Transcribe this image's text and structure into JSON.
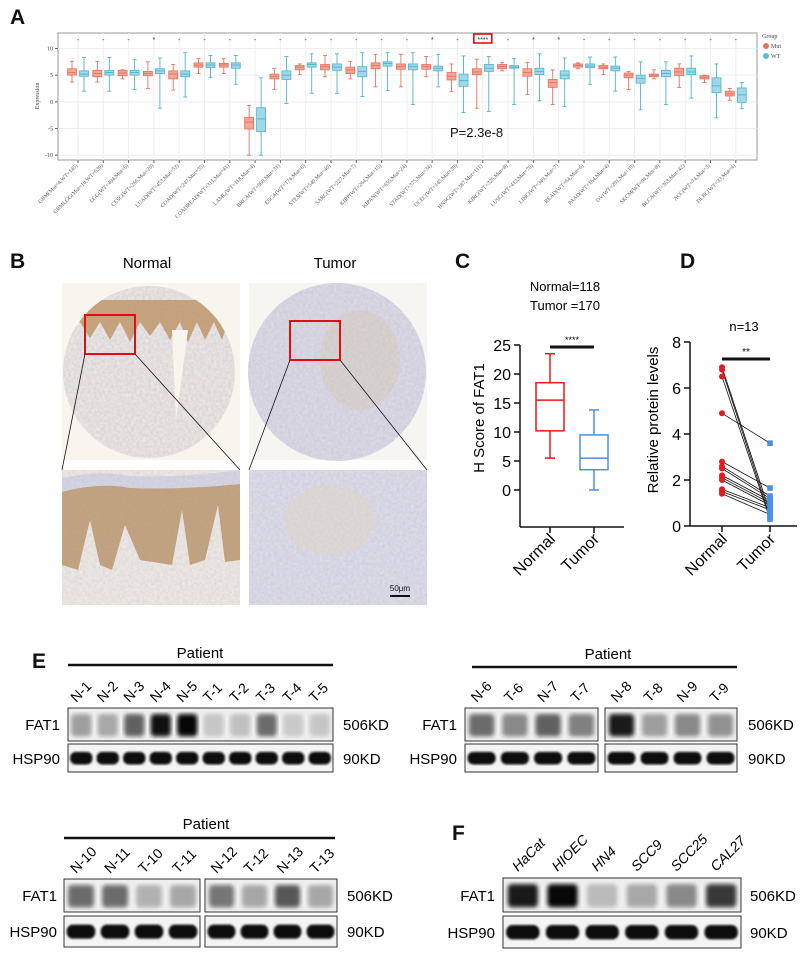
{
  "panels": {
    "a": "A",
    "b": "B",
    "c": "C",
    "d": "D",
    "e": "E",
    "f": "F"
  },
  "panel_b": {
    "normal_label": "Normal",
    "tumor_label": "Tumor",
    "scale_bar": "50μm"
  },
  "panel_e": {
    "group_label": "Patient",
    "rows": [
      "FAT1",
      "HSP90"
    ],
    "markers": [
      "506KD",
      "90KD"
    ],
    "groups": [
      {
        "lanes": [
          "N-1",
          "N-2",
          "N-3",
          "N-4",
          "N-5",
          "T-1",
          "T-2",
          "T-3",
          "T-4",
          "T-5"
        ],
        "fat1_levels": [
          0.25,
          0.2,
          0.55,
          0.95,
          1.0,
          0.05,
          0.08,
          0.5,
          0.03,
          0.05
        ]
      },
      {
        "lanes": [
          "N-6",
          "T-6",
          "N-7",
          "T-7",
          "N-8",
          "T-8",
          "N-9",
          "T-9"
        ],
        "fat1_levels": [
          0.5,
          0.35,
          0.55,
          0.4,
          0.9,
          0.25,
          0.35,
          0.3
        ]
      },
      {
        "lanes": [
          "N-10",
          "N-11",
          "T-10",
          "T-11",
          "N-12",
          "T-12",
          "N-13",
          "T-13"
        ],
        "fat1_levels": [
          0.5,
          0.5,
          0.15,
          0.2,
          0.45,
          0.2,
          0.6,
          0.2
        ]
      }
    ]
  },
  "panel_f": {
    "rows": [
      "FAT1",
      "HSP90"
    ],
    "markers": [
      "506KD",
      "90KD"
    ],
    "lanes": [
      "HaCat",
      "HIOEC",
      "HN4",
      "SCC9",
      "SCC25",
      "CAL27"
    ],
    "fat1_levels": [
      0.9,
      1.0,
      0.1,
      0.2,
      0.35,
      0.75
    ]
  },
  "chart_data": [
    {
      "type": "box",
      "ylabel": "Expression",
      "ylim": [
        -10.9,
        12.9
      ],
      "yticks": [
        -10,
        -5,
        0,
        5,
        10
      ],
      "grid": true,
      "legend": {
        "title": "Group",
        "position": "right",
        "entries": [
          {
            "name": "Mut",
            "color": "#e8715f"
          },
          {
            "name": "WT",
            "color": "#5bbcd6"
          }
        ]
      },
      "annotation": "P=2.3e-8",
      "highlighted_index": 16,
      "categories": [
        "GBM(Mut=4,WT=145)",
        "GBMLGG(Mut=10,WT=639)",
        "LGG(WT=494,Mut=6)",
        "CESC(WT=266,Mut=20)",
        "LUAD(WT=453,Mut=53)",
        "COAD(WT=247,Mut=35)",
        "COADREAD(WT=311,Mut=41)",
        "LAML(WT=118,Mut=4)",
        "BRCA(WT=969,Mut=31)",
        "ESCA(WT=174,Mut=6)",
        "STES(WT=540,Mut=40)",
        "SARC(WT=227,Mut=7)",
        "KIRP(WT=264,Mut=15)",
        "KIPAN(WT=655,Mut=24)",
        "STAD(WT=375,Mut=34)",
        "UCEC(WT=145,Mut=39)",
        "HNSC(WT=387,Mut=111)",
        "KIRC(WT=326,Mut=8)",
        "LUSC(WT=413,Mut=70)",
        "LIHC(WT=349,Mut=7)",
        "READ(WT=64,Mut=6)",
        "PAAD(WT=164,Mut=4)",
        "OV(WT=291,Mut=10)",
        "SKCM(WT=94,Mut=8)",
        "BLCA(WT=363,Mut=42)",
        "ACC(WT=74,Mut=3)",
        "DLBC(WT=33,Mut=4)"
      ],
      "significance": [
        "-",
        "-",
        "-",
        "*",
        "-",
        "-",
        "-",
        "-",
        "-",
        "-",
        "-",
        "-",
        "-",
        "-",
        "*",
        "-",
        "****",
        "-",
        "*",
        "*",
        "-",
        "-",
        "-",
        "-",
        "-",
        "-",
        "-"
      ],
      "series": [
        {
          "name": "Mut",
          "color": "#e8715f",
          "fill": "#f4a596",
          "stats": [
            [
              3.7,
              5,
              5.5,
              6.2,
              7.6
            ],
            [
              3.7,
              4.7,
              5.3,
              5.9,
              7.6
            ],
            [
              4.3,
              4.9,
              5.4,
              5.9,
              6
            ],
            [
              2.5,
              4.9,
              5.3,
              5.7,
              7.5
            ],
            [
              2.2,
              4.3,
              5.2,
              5.8,
              7
            ],
            [
              5.3,
              6.5,
              6.9,
              7.3,
              8.1
            ],
            [
              5.3,
              6.5,
              6.9,
              7.2,
              8.1
            ],
            [
              -10,
              -5.1,
              -3.8,
              -2.9,
              -0.7
            ],
            [
              2.3,
              4.3,
              4.8,
              5.2,
              6.3
            ],
            [
              5.1,
              6,
              6.5,
              6.8,
              7.1
            ],
            [
              4.7,
              6,
              6.6,
              7,
              8.7
            ],
            [
              4.3,
              5.3,
              6,
              6.5,
              7.6
            ],
            [
              2.8,
              6.2,
              6.8,
              7.3,
              8.9
            ],
            [
              2.8,
              6.1,
              6.6,
              7.1,
              8.9
            ],
            [
              4.7,
              6.1,
              6.6,
              7,
              8.5
            ],
            [
              1.9,
              4.1,
              4.8,
              5.5,
              7.1
            ],
            [
              -1.2,
              5.1,
              5.6,
              6.2,
              8
            ],
            [
              5.8,
              6.2,
              6.6,
              7,
              7.4
            ],
            [
              1.4,
              4.8,
              5.5,
              6.2,
              7.4
            ],
            [
              -0.5,
              2.7,
              3.6,
              4.2,
              6
            ],
            [
              6.2,
              6.5,
              6.8,
              7.1,
              7.3
            ],
            [
              5.1,
              6.2,
              6.5,
              6.8,
              7.1
            ],
            [
              2.3,
              4.5,
              5,
              5.4,
              5.7
            ],
            [
              4.3,
              4.7,
              5,
              5.2,
              6
            ],
            [
              2.7,
              4.9,
              5.6,
              6.3,
              7.1
            ],
            [
              3.6,
              4.3,
              4.6,
              4.9,
              5
            ],
            [
              0.3,
              1.1,
              1.5,
              2,
              2.5
            ]
          ]
        },
        {
          "name": "WT",
          "color": "#4fb3cc",
          "fill": "#9fd8e8",
          "stats": [
            [
              2,
              4.8,
              5.2,
              5.8,
              8.3
            ],
            [
              2,
              5,
              5.5,
              5.9,
              8.3
            ],
            [
              2.3,
              5,
              5.5,
              5.9,
              7.9
            ],
            [
              -1.2,
              5.3,
              5.8,
              6.2,
              8.2
            ],
            [
              0.9,
              4.7,
              5.2,
              5.8,
              9.2
            ],
            [
              4.6,
              6.4,
              6.9,
              7.3,
              8.7
            ],
            [
              3.3,
              6.3,
              6.9,
              7.3,
              8.7
            ],
            [
              -10,
              -5.6,
              -3.2,
              -1.1,
              4.5
            ],
            [
              -0.3,
              4.2,
              5,
              5.8,
              8.5
            ],
            [
              1.6,
              6.5,
              7,
              7.3,
              9
            ],
            [
              1.6,
              5.9,
              6.5,
              7.1,
              9
            ],
            [
              1,
              4.7,
              5.7,
              6.6,
              9.2
            ],
            [
              2.1,
              6.7,
              7.2,
              7.5,
              9.2
            ],
            [
              -0.5,
              6,
              6.6,
              7.1,
              9.2
            ],
            [
              2.8,
              5.8,
              6.3,
              6.7,
              8.9
            ],
            [
              -2,
              2.9,
              4,
              5.2,
              8.6
            ],
            [
              -1.8,
              5.7,
              6.3,
              7,
              8.5
            ],
            [
              -0.5,
              6.3,
              6.5,
              6.8,
              8.1
            ],
            [
              0.2,
              5.1,
              5.7,
              6.3,
              9
            ],
            [
              -0.9,
              4.3,
              5,
              5.8,
              8.2
            ],
            [
              3.3,
              6.4,
              6.7,
              7.1,
              8.4
            ],
            [
              2,
              5.8,
              6.3,
              6.7,
              8.4
            ],
            [
              -1.5,
              3.5,
              4.4,
              5,
              7.5
            ],
            [
              -0.5,
              4.7,
              5.3,
              5.9,
              7.5
            ],
            [
              0.7,
              5.1,
              5.6,
              6.3,
              8.6
            ],
            [
              -3,
              1.7,
              3,
              4.5,
              7.1
            ],
            [
              -1.3,
              -0.1,
              1.3,
              2.6,
              3.6
            ]
          ]
        }
      ]
    },
    {
      "type": "box",
      "ylabel": "H Score of FAT1",
      "ylim": [
        -6.4,
        25
      ],
      "yticks": [
        0,
        5,
        10,
        15,
        20,
        25
      ],
      "annotation": [
        "Normal=118",
        "Tumor =170"
      ],
      "significance": "****",
      "categories": [
        "Normal",
        "Tumor"
      ],
      "colors": [
        "#e41a1c",
        "#4a90e2"
      ],
      "stats": [
        [
          5.5,
          10.2,
          15.5,
          18.5,
          23.5
        ],
        [
          0,
          3.5,
          5.5,
          9.5,
          13.8
        ]
      ]
    },
    {
      "type": "paired",
      "ylabel": "Relative protein levels",
      "ylim": [
        0,
        8
      ],
      "yticks": [
        0,
        2,
        4,
        6,
        8
      ],
      "annotation": "n=13",
      "significance": "**",
      "categories": [
        "Normal",
        "Tumor"
      ],
      "colors": [
        "#e41a1c",
        "#4a90e2"
      ],
      "normal": [
        6.9,
        6.8,
        6.5,
        4.9,
        2.8,
        2.6,
        2.5,
        2.2,
        2.1,
        2.0,
        1.6,
        1.5,
        1.4
      ],
      "tumor": [
        0.6,
        0.4,
        0.3,
        3.6,
        1.65,
        1.3,
        1.2,
        1.1,
        1.0,
        0.9,
        0.8,
        0.7,
        0.5
      ]
    }
  ]
}
